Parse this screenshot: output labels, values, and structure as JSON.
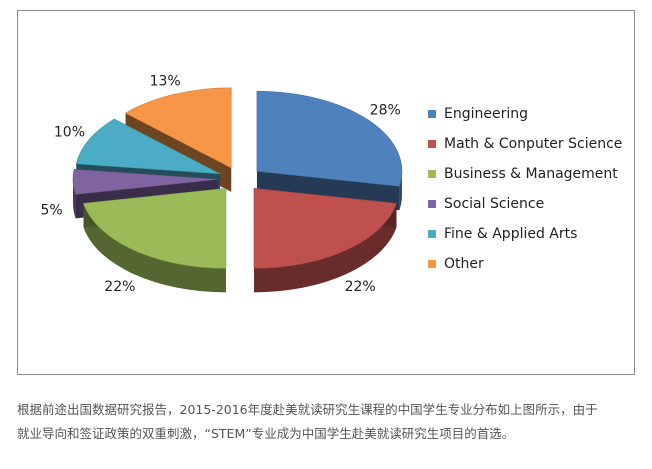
{
  "chart_data": {
    "type": "pie",
    "title": "",
    "slices": [
      {
        "label": "Engineering",
        "value": 28,
        "value_label": "28%",
        "color": "#4F81BD"
      },
      {
        "label": "Math & Conputer Science",
        "value": 22,
        "value_label": "22%",
        "color": "#C0504D"
      },
      {
        "label": "Business & Management",
        "value": 22,
        "value_label": "22%",
        "color": "#9BBB59"
      },
      {
        "label": "Social Science",
        "value": 5,
        "value_label": "5%",
        "color": "#8064A2"
      },
      {
        "label": "Fine & Applied Arts",
        "value": 10,
        "value_label": "10%",
        "color": "#4BACC6"
      },
      {
        "label": "Other",
        "value": 13,
        "value_label": "13%",
        "color": "#F79646"
      }
    ],
    "legend_position": "right",
    "style": "3d-exploded"
  },
  "caption": {
    "line1": "根据前途出国数据研究报告，2015-2016年度赴美就读研究生课程的中国学生专业分布如上图所示，由于",
    "line2": "就业导向和签证政策的双重刺激，“STEM”专业成为中国学生赴美就读研究生项目的首选。"
  }
}
